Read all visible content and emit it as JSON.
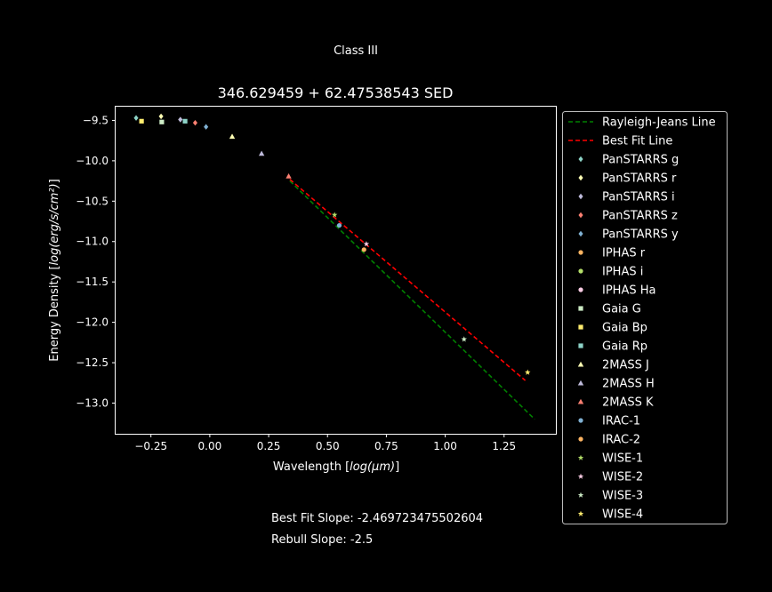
{
  "chart_data": {
    "type": "scatter",
    "suptitle": "Class III",
    "title": "346.629459 + 62.47538543 SED",
    "xlabel_prefix": "Wavelength [",
    "xlabel_unit": "log(µm)",
    "xlabel_suffix": "]",
    "ylabel_prefix": "Energy Density [",
    "ylabel_unit": "log(erg/s/cm²)",
    "ylabel_suffix": "]",
    "xlim": [
      -0.4,
      1.47
    ],
    "ylim": [
      -13.38,
      -9.33
    ],
    "x_ticks": [
      -0.25,
      0.0,
      0.25,
      0.5,
      0.75,
      1.0,
      1.25
    ],
    "x_tick_labels": [
      "−0.25",
      "0.00",
      "0.25",
      "0.50",
      "0.75",
      "1.00",
      "1.25"
    ],
    "y_ticks": [
      -9.5,
      -10.0,
      -10.5,
      -11.0,
      -11.5,
      -12.0,
      -12.5,
      -13.0
    ],
    "y_tick_labels": [
      "−9.5",
      "−10.0",
      "−10.5",
      "−11.0",
      "−11.5",
      "−12.0",
      "−12.5",
      "−13.0"
    ],
    "grid": false,
    "legend_position": "outside-right",
    "lines": [
      {
        "name": "Rayleigh-Jeans Line",
        "color": "#008000",
        "dash": "dashed",
        "x": [
          0.34,
          1.38
        ],
        "y": [
          -10.25,
          -13.2
        ]
      },
      {
        "name": "Best Fit Line",
        "color": "#ff0000",
        "dash": "dashed",
        "x": [
          0.34,
          1.34
        ],
        "y": [
          -10.23,
          -12.72
        ]
      }
    ],
    "series": [
      {
        "name": "PanSTARRS g",
        "marker": "diamond",
        "color": "#8dd3c7",
        "x": [
          -0.313
        ],
        "y": [
          -9.47
        ]
      },
      {
        "name": "PanSTARRS r",
        "marker": "diamond",
        "color": "#ffffb3",
        "x": [
          -0.207
        ],
        "y": [
          -9.45
        ]
      },
      {
        "name": "PanSTARRS i",
        "marker": "diamond",
        "color": "#bebada",
        "x": [
          -0.125
        ],
        "y": [
          -9.49
        ]
      },
      {
        "name": "PanSTARRS z",
        "marker": "diamond",
        "color": "#fb8072",
        "x": [
          -0.062
        ],
        "y": [
          -9.53
        ]
      },
      {
        "name": "PanSTARRS y",
        "marker": "diamond",
        "color": "#80b1d3",
        "x": [
          -0.016
        ],
        "y": [
          -9.58
        ]
      },
      {
        "name": "IPHAS r",
        "marker": "circle",
        "color": "#fdb462",
        "x": [],
        "y": []
      },
      {
        "name": "IPHAS i",
        "marker": "circle",
        "color": "#b3de69",
        "x": [],
        "y": []
      },
      {
        "name": "IPHAS Ha",
        "marker": "circle",
        "color": "#fccde5",
        "x": [],
        "y": []
      },
      {
        "name": "Gaia G",
        "marker": "square",
        "color": "#ccebc5",
        "x": [
          -0.204
        ],
        "y": [
          -9.52
        ]
      },
      {
        "name": "Gaia Bp",
        "marker": "square",
        "color": "#ffed6f",
        "x": [
          -0.29
        ],
        "y": [
          -9.51
        ]
      },
      {
        "name": "Gaia Rp",
        "marker": "square",
        "color": "#8dd3c7",
        "x": [
          -0.105
        ],
        "y": [
          -9.51
        ]
      },
      {
        "name": "2MASS J",
        "marker": "triangle",
        "color": "#ffffb3",
        "x": [
          0.095
        ],
        "y": [
          -9.7
        ]
      },
      {
        "name": "2MASS H",
        "marker": "triangle",
        "color": "#bebada",
        "x": [
          0.22
        ],
        "y": [
          -9.91
        ]
      },
      {
        "name": "2MASS K",
        "marker": "triangle",
        "color": "#fb8072",
        "x": [
          0.335
        ],
        "y": [
          -10.19
        ]
      },
      {
        "name": "IRAC-1",
        "marker": "circle",
        "color": "#80b1d3",
        "x": [
          0.55
        ],
        "y": [
          -10.8
        ]
      },
      {
        "name": "IRAC-2",
        "marker": "circle",
        "color": "#fdb462",
        "x": [
          0.655
        ],
        "y": [
          -11.1
        ]
      },
      {
        "name": "WISE-1",
        "marker": "star",
        "color": "#b3de69",
        "x": [
          0.53
        ],
        "y": [
          -10.67
        ]
      },
      {
        "name": "WISE-2",
        "marker": "star",
        "color": "#fccde5",
        "x": [
          0.665
        ],
        "y": [
          -11.03
        ]
      },
      {
        "name": "WISE-3",
        "marker": "star",
        "color": "#ccebc5",
        "x": [
          1.08
        ],
        "y": [
          -12.21
        ]
      },
      {
        "name": "WISE-4",
        "marker": "star",
        "color": "#ffed6f",
        "x": [
          1.35
        ],
        "y": [
          -12.62
        ]
      }
    ]
  },
  "annotations": {
    "best_fit_slope": "Best Fit Slope: -2.469723475502604",
    "rebull_slope": "Rebull Slope: -2.5"
  }
}
